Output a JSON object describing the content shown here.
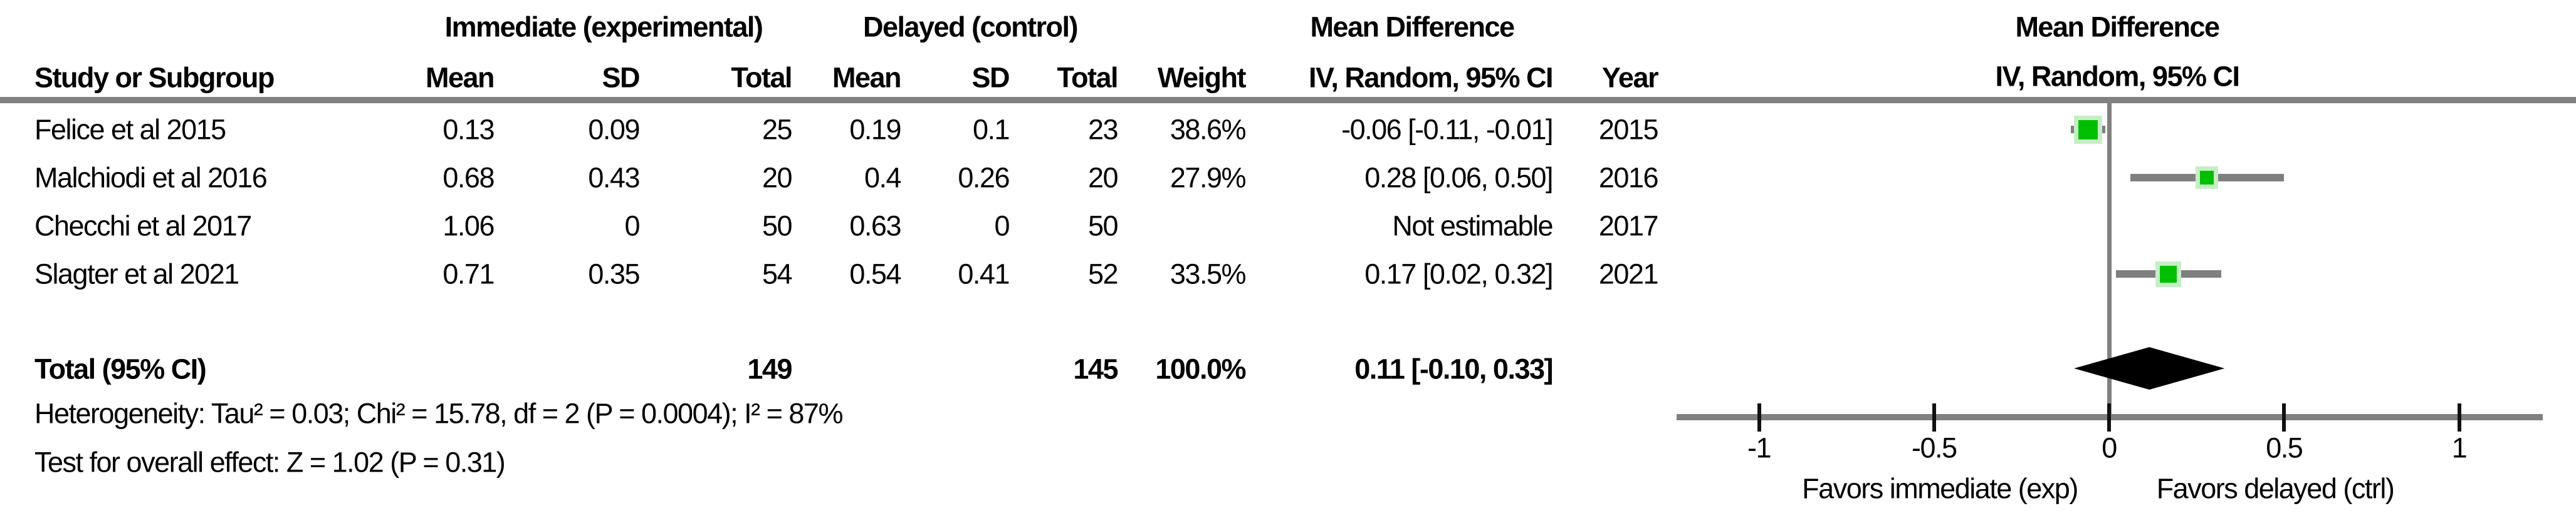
{
  "table": {
    "group_headers": {
      "experimental": "Immediate (experimental)",
      "control": "Delayed (control)",
      "mean_difference": "Mean Difference"
    },
    "columns": [
      "Study or Subgroup",
      "Mean",
      "SD",
      "Total",
      "Mean",
      "SD",
      "Total",
      "Weight",
      "IV, Random, 95% CI",
      "Year"
    ],
    "rows": [
      {
        "study": "Felice et al 2015",
        "mean1": "0.13",
        "sd1": "0.09",
        "total1": "25",
        "mean2": "0.19",
        "sd2": "0.1",
        "total2": "23",
        "weight": "38.6%",
        "ci": "-0.06 [-0.11, -0.01]",
        "year": "2015"
      },
      {
        "study": "Malchiodi et al 2016",
        "mean1": "0.68",
        "sd1": "0.43",
        "total1": "20",
        "mean2": "0.4",
        "sd2": "0.26",
        "total2": "20",
        "weight": "27.9%",
        "ci": "0.28 [0.06, 0.50]",
        "year": "2016"
      },
      {
        "study": "Checchi et al 2017",
        "mean1": "1.06",
        "sd1": "0",
        "total1": "50",
        "mean2": "0.63",
        "sd2": "0",
        "total2": "50",
        "weight": "",
        "ci": "Not estimable",
        "year": "2017"
      },
      {
        "study": "Slagter et al 2021",
        "mean1": "0.71",
        "sd1": "0.35",
        "total1": "54",
        "mean2": "0.54",
        "sd2": "0.41",
        "total2": "52",
        "weight": "33.5%",
        "ci": "0.17 [0.02, 0.32]",
        "year": "2021"
      }
    ],
    "total_row": {
      "label": "Total (95% CI)",
      "total1": "149",
      "total2": "145",
      "weight": "100.0%",
      "ci": "0.11 [-0.10, 0.33]"
    },
    "heterogeneity": "Heterogeneity: Tau² = 0.03; Chi² = 15.78, df = 2 (P = 0.0004); I² = 87%",
    "overall_effect": "Test for overall effect: Z = 1.02 (P = 0.31)"
  },
  "plot": {
    "title": "Mean Difference",
    "subtitle": "IV, Random, 95% CI",
    "tick_labels": [
      "-1",
      "-0.5",
      "0",
      "0.5",
      "1"
    ],
    "favors_left": "Favors immediate (exp)",
    "favors_right": "Favors delayed (ctrl)",
    "colors": {
      "square": "#00bf00",
      "square_border": "#c6eec6",
      "ci_line": "#7f7f7f",
      "grid_lines": "#808080",
      "diamond": "#000000"
    }
  },
  "chart_data": {
    "type": "scatter",
    "subtype": "forest_plot",
    "effect_measure": "Mean Difference (IV, Random, 95% CI)",
    "xlim": [
      -1,
      1
    ],
    "ticks": [
      -1,
      -0.5,
      0,
      0.5,
      1
    ],
    "studies": [
      {
        "name": "Felice et al 2015",
        "mean_exp": 0.13,
        "sd_exp": 0.09,
        "n_exp": 25,
        "mean_ctrl": 0.19,
        "sd_ctrl": 0.1,
        "n_ctrl": 23,
        "weight_pct": 38.6,
        "md": -0.06,
        "ci": [
          -0.11,
          -0.01
        ],
        "year": 2015,
        "estimable": true
      },
      {
        "name": "Malchiodi et al 2016",
        "mean_exp": 0.68,
        "sd_exp": 0.43,
        "n_exp": 20,
        "mean_ctrl": 0.4,
        "sd_ctrl": 0.26,
        "n_ctrl": 20,
        "weight_pct": 27.9,
        "md": 0.28,
        "ci": [
          0.06,
          0.5
        ],
        "year": 2016,
        "estimable": true
      },
      {
        "name": "Checchi et al 2017",
        "mean_exp": 1.06,
        "sd_exp": 0,
        "n_exp": 50,
        "mean_ctrl": 0.63,
        "sd_ctrl": 0,
        "n_ctrl": 50,
        "weight_pct": null,
        "md": null,
        "ci": null,
        "year": 2017,
        "estimable": false
      },
      {
        "name": "Slagter et al 2021",
        "mean_exp": 0.71,
        "sd_exp": 0.35,
        "n_exp": 54,
        "mean_ctrl": 0.54,
        "sd_ctrl": 0.41,
        "n_ctrl": 52,
        "weight_pct": 33.5,
        "md": 0.17,
        "ci": [
          0.02,
          0.32
        ],
        "year": 2021,
        "estimable": true
      }
    ],
    "total": {
      "n_exp": 149,
      "n_ctrl": 145,
      "weight_pct": 100.0,
      "md": 0.11,
      "ci": [
        -0.1,
        0.33
      ]
    },
    "heterogeneity": {
      "tau2": 0.03,
      "chi2": 15.78,
      "df": 2,
      "p": 0.0004,
      "i2_pct": 87
    },
    "overall_effect": {
      "z": 1.02,
      "p": 0.31
    },
    "axis_captions": {
      "left": "Favors immediate (exp)",
      "right": "Favors delayed (ctrl)"
    }
  }
}
